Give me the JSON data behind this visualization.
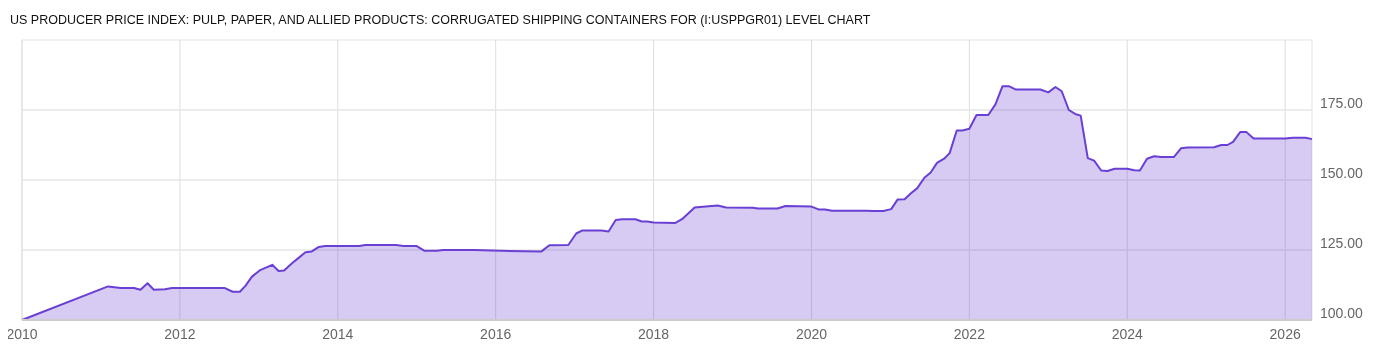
{
  "chart_data": {
    "type": "area",
    "title": "US PRODUCER PRICE INDEX: PULP, PAPER, AND ALLIED PRODUCTS: CORRUGATED SHIPPING CONTAINERS FOR (I:USPPGR01) LEVEL CHART",
    "xlim": [
      2010,
      2026.34
    ],
    "xticks": [
      2010,
      2012,
      2014,
      2016,
      2018,
      2020,
      2022,
      2024,
      2026
    ],
    "ylim": [
      100,
      200
    ],
    "yticks": [
      {
        "value": 100,
        "label": "100.00"
      },
      {
        "value": 125,
        "label": "125.00"
      },
      {
        "value": 150,
        "label": "150.00"
      },
      {
        "value": 175,
        "label": "175.00"
      }
    ],
    "grid": true,
    "series": [
      {
        "color": "#6a3fd4",
        "x": [
          2010.0,
          2011.09,
          2011.25,
          2011.42,
          2011.5,
          2011.59,
          2011.67,
          2011.81,
          2011.9,
          2012.57,
          2012.67,
          2012.76,
          2012.83,
          2012.91,
          2013.01,
          2013.17,
          2013.25,
          2013.32,
          2013.42,
          2013.5,
          2013.59,
          2013.67,
          2013.76,
          2013.84,
          2014.27,
          2014.35,
          2014.74,
          2014.83,
          2015.0,
          2015.1,
          2015.25,
          2015.34,
          2015.73,
          2016.07,
          2016.58,
          2016.68,
          2016.92,
          2017.02,
          2017.1,
          2017.34,
          2017.43,
          2017.52,
          2017.6,
          2017.77,
          2017.85,
          2017.92,
          2018.0,
          2018.27,
          2018.36,
          2018.52,
          2018.7,
          2018.81,
          2018.92,
          2019.26,
          2019.32,
          2019.57,
          2019.67,
          2020.0,
          2020.09,
          2020.17,
          2020.26,
          2020.7,
          2020.78,
          2020.91,
          2021.01,
          2021.09,
          2021.18,
          2021.26,
          2021.34,
          2021.43,
          2021.51,
          2021.59,
          2021.68,
          2021.75,
          2021.84,
          2021.91,
          2022.0,
          2022.09,
          2022.24,
          2022.33,
          2022.42,
          2022.5,
          2022.59,
          2022.9,
          2023.0,
          2023.09,
          2023.17,
          2023.26,
          2023.34,
          2023.41,
          2023.5,
          2023.58,
          2023.67,
          2023.75,
          2023.84,
          2024.0,
          2024.09,
          2024.16,
          2024.25,
          2024.34,
          2024.43,
          2024.59,
          2024.68,
          2024.76,
          2025.1,
          2025.19,
          2025.27,
          2025.34,
          2025.43,
          2025.51,
          2025.6,
          2026.0,
          2026.1,
          2026.26,
          2026.34
        ],
        "values": [
          100,
          112.0,
          111.4,
          111.4,
          110.8,
          113.1,
          110.8,
          111.0,
          111.4,
          111.4,
          110.1,
          110.1,
          112.2,
          115.4,
          117.7,
          119.7,
          117.5,
          117.7,
          120.3,
          122.1,
          124.2,
          124.5,
          126.1,
          126.4,
          126.4,
          126.8,
          126.8,
          126.4,
          126.4,
          124.7,
          124.7,
          125.0,
          125.0,
          124.7,
          124.5,
          126.7,
          126.8,
          130.9,
          132.0,
          132.0,
          131.6,
          135.7,
          136.0,
          136.0,
          135.2,
          135.2,
          134.8,
          134.6,
          136.0,
          140.2,
          140.6,
          140.9,
          140.2,
          140.1,
          139.8,
          139.8,
          140.7,
          140.5,
          139.5,
          139.5,
          139.0,
          139.0,
          138.9,
          138.9,
          139.6,
          143.0,
          143.1,
          145.3,
          147.1,
          150.8,
          152.7,
          156.1,
          157.6,
          159.6,
          167.7,
          167.7,
          168.3,
          173.2,
          173.2,
          177.0,
          183.5,
          183.5,
          182.3,
          182.3,
          181.3,
          183.2,
          181.7,
          175.0,
          173.6,
          173.0,
          157.8,
          156.9,
          153.4,
          153.2,
          154.0,
          154.0,
          153.5,
          153.4,
          157.6,
          158.5,
          158.2,
          158.2,
          161.3,
          161.6,
          161.7,
          162.5,
          162.5,
          163.6,
          167.1,
          167.1,
          164.8,
          164.8,
          165.1,
          165.1,
          164.6
        ]
      }
    ]
  }
}
